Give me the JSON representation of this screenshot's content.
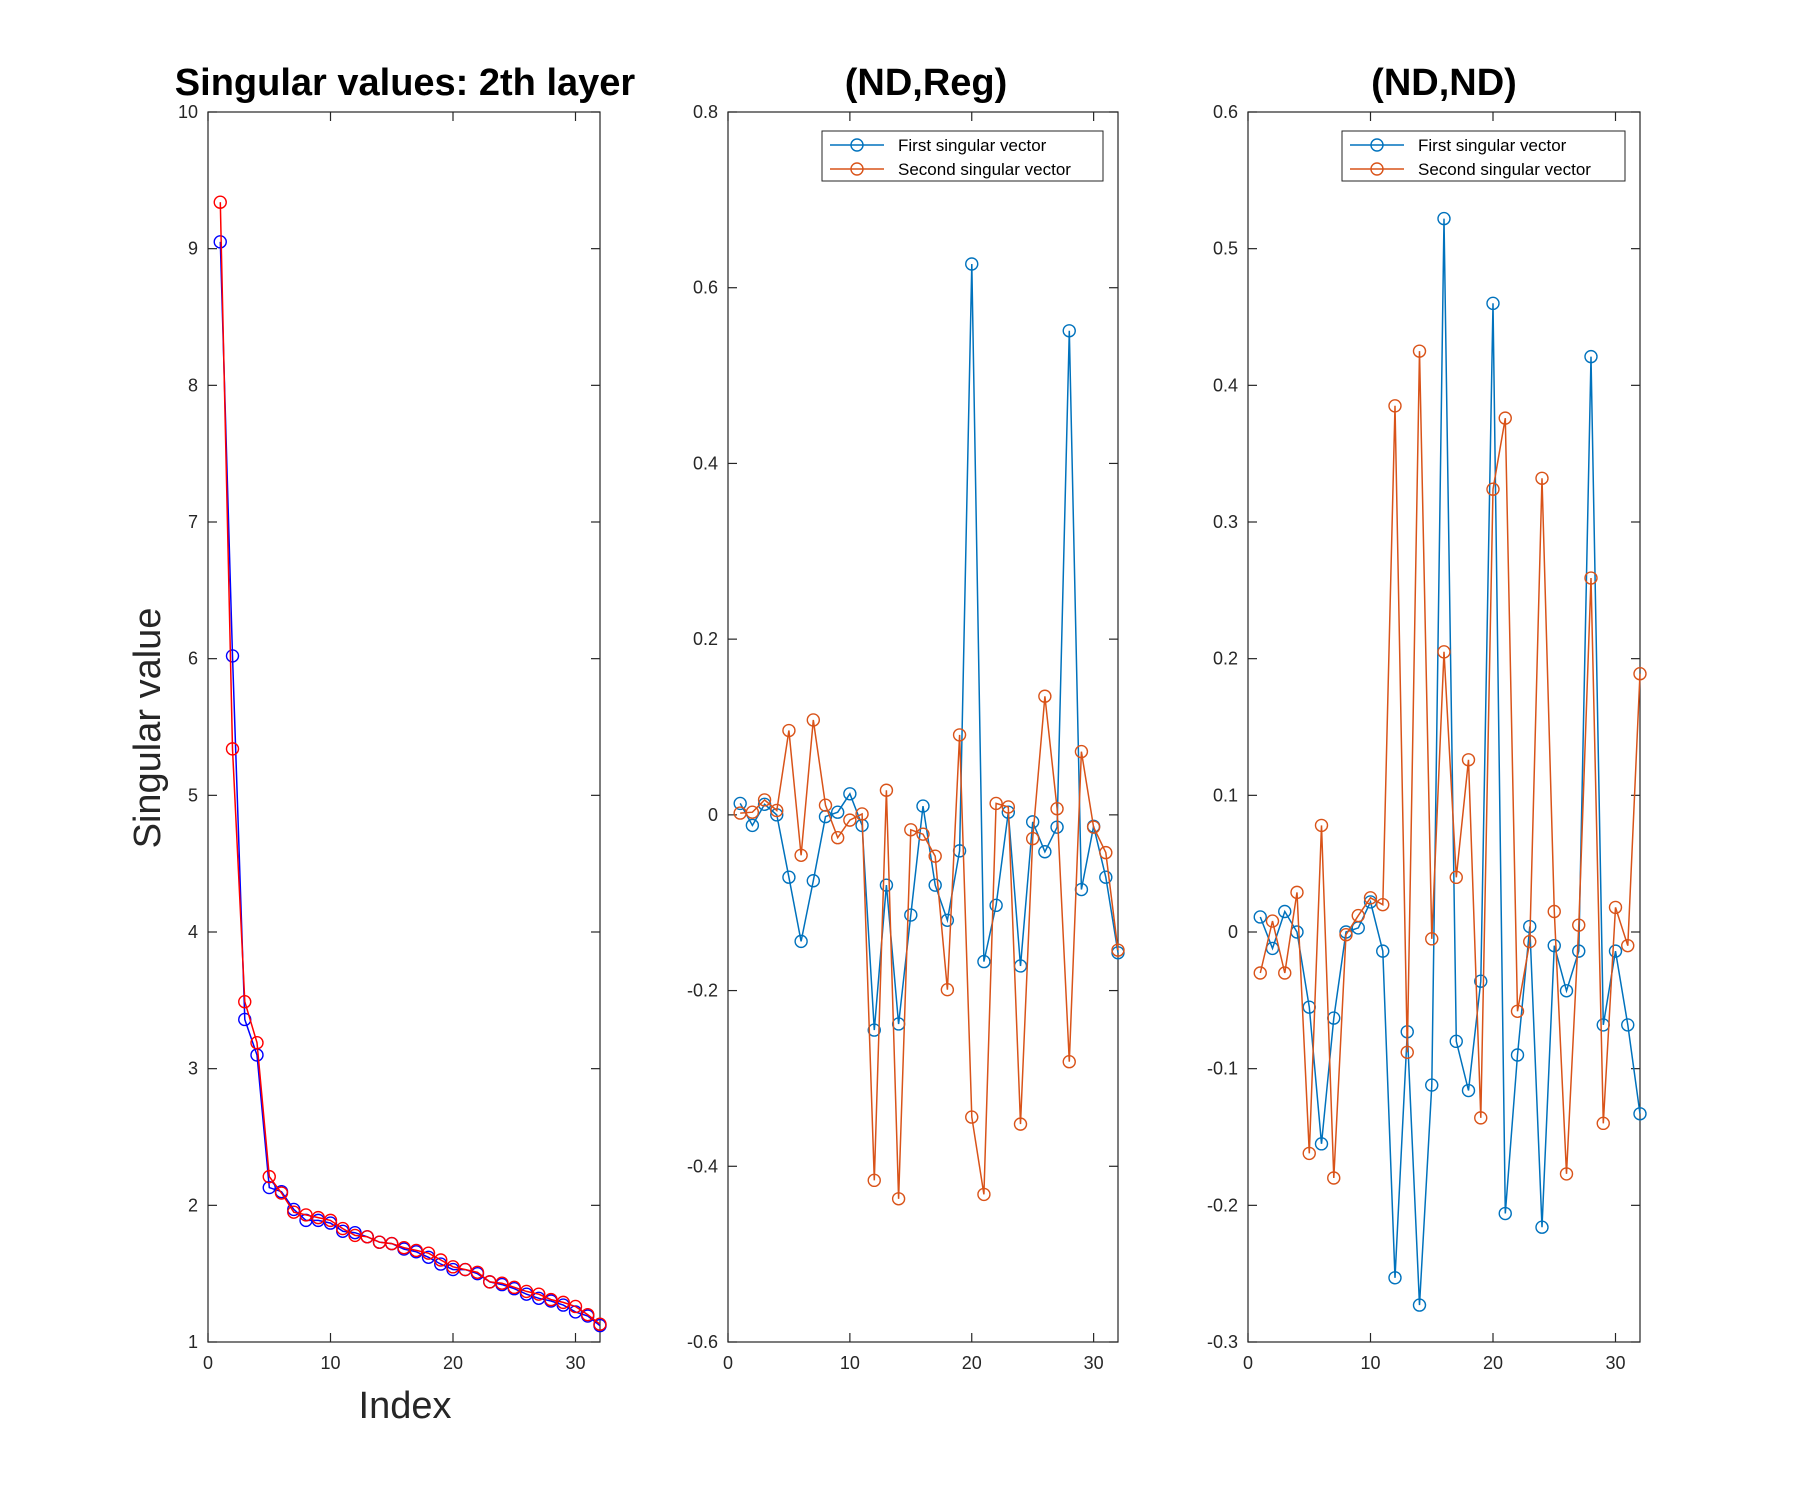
{
  "chart_data": [
    {
      "type": "line",
      "title": "Singular values: 2th layer",
      "xlabel": "Index",
      "ylabel": "Singular value",
      "xlim": [
        0,
        32
      ],
      "ylim": [
        1,
        10
      ],
      "xticks": [
        0,
        10,
        20,
        30
      ],
      "yticks": [
        1,
        2,
        3,
        4,
        5,
        6,
        7,
        8,
        9,
        10
      ],
      "x": [
        1,
        2,
        3,
        4,
        5,
        6,
        7,
        8,
        9,
        10,
        11,
        12,
        13,
        14,
        15,
        16,
        17,
        18,
        19,
        20,
        21,
        22,
        23,
        24,
        25,
        26,
        27,
        28,
        29,
        30,
        31,
        32
      ],
      "series": [
        {
          "color": "#0000ff",
          "values": [
            9.05,
            6.02,
            3.36,
            3.1,
            2.13,
            2.1,
            1.97,
            1.89,
            1.89,
            1.87,
            1.81,
            1.8,
            1.77,
            1.73,
            1.72,
            1.68,
            1.66,
            1.62,
            1.57,
            1.53,
            1.53,
            1.5,
            1.44,
            1.42,
            1.39,
            1.35,
            1.32,
            1.3,
            1.27,
            1.22,
            1.19,
            1.12
          ]
        },
        {
          "color": "#ff0000",
          "values": [
            9.34,
            5.34,
            3.49,
            3.19,
            2.21,
            2.09,
            1.95,
            1.93,
            1.91,
            1.89,
            1.83,
            1.78,
            1.77,
            1.73,
            1.72,
            1.69,
            1.67,
            1.65,
            1.6,
            1.55,
            1.53,
            1.51,
            1.44,
            1.43,
            1.4,
            1.37,
            1.35,
            1.31,
            1.29,
            1.26,
            1.2,
            1.13
          ]
        }
      ]
    },
    {
      "type": "line",
      "title": "(ND,Reg)",
      "xlim": [
        0,
        32
      ],
      "ylim": [
        -0.6,
        0.8
      ],
      "xticks": [
        0,
        10,
        20,
        30
      ],
      "yticks": [
        "-0.6",
        "-0.4",
        "-0.2",
        "0",
        "0.2",
        "0.4",
        "0.6",
        "0.8"
      ],
      "legend_position": "top-right",
      "x": [
        1,
        2,
        3,
        4,
        5,
        6,
        7,
        8,
        9,
        10,
        11,
        12,
        13,
        14,
        15,
        16,
        17,
        18,
        19,
        20,
        21,
        22,
        23,
        24,
        25,
        26,
        27,
        28,
        29,
        30,
        31,
        32
      ],
      "series": [
        {
          "name": "First singular vector",
          "color": "#0072bd",
          "values": [
            0.013,
            -0.012,
            0.012,
            0.0,
            -0.071,
            -0.144,
            -0.075,
            -0.002,
            0.003,
            0.024,
            -0.012,
            -0.245,
            -0.08,
            -0.238,
            -0.114,
            0.01,
            -0.08,
            -0.12,
            -0.041,
            0.627,
            -0.167,
            -0.103,
            0.003,
            -0.172,
            -0.008,
            -0.042,
            -0.014,
            0.551,
            -0.085,
            -0.013,
            -0.071,
            -0.157
          ]
        },
        {
          "name": "Second singular vector",
          "color": "#d95319",
          "values": [
            0.002,
            0.003,
            0.017,
            0.005,
            0.096,
            -0.046,
            0.108,
            0.011,
            -0.026,
            -0.006,
            0.001,
            -0.416,
            0.028,
            -0.437,
            -0.017,
            -0.022,
            -0.047,
            -0.199,
            0.091,
            -0.344,
            -0.432,
            0.013,
            0.009,
            -0.352,
            -0.027,
            0.135,
            0.007,
            -0.281,
            0.072,
            -0.014,
            -0.043,
            -0.154
          ]
        }
      ]
    },
    {
      "type": "line",
      "title": "(ND,ND)",
      "xlim": [
        0,
        32
      ],
      "ylim": [
        -0.3,
        0.6
      ],
      "xticks": [
        0,
        10,
        20,
        30
      ],
      "yticks": [
        "-0.3",
        "-0.2",
        "-0.1",
        "0",
        "0.1",
        "0.2",
        "0.3",
        "0.4",
        "0.5",
        "0.6"
      ],
      "legend_position": "top-right",
      "x": [
        1,
        2,
        3,
        4,
        5,
        6,
        7,
        8,
        9,
        10,
        11,
        12,
        13,
        14,
        15,
        16,
        17,
        18,
        19,
        20,
        21,
        22,
        23,
        24,
        25,
        26,
        27,
        28,
        29,
        30,
        31,
        32
      ],
      "series": [
        {
          "name": "First singular vector",
          "color": "#0072bd",
          "values": [
            0.011,
            -0.012,
            0.015,
            0.0,
            -0.055,
            -0.155,
            -0.063,
            0.0,
            0.003,
            0.022,
            -0.014,
            -0.253,
            -0.073,
            -0.273,
            -0.112,
            0.522,
            -0.08,
            -0.116,
            -0.036,
            0.46,
            -0.206,
            -0.09,
            0.004,
            -0.216,
            -0.01,
            -0.043,
            -0.014,
            0.421,
            -0.068,
            -0.014,
            -0.068,
            -0.133
          ]
        },
        {
          "name": "Second singular vector",
          "color": "#d95319",
          "values": [
            -0.03,
            0.008,
            -0.03,
            0.029,
            -0.162,
            0.078,
            -0.18,
            -0.002,
            0.012,
            0.025,
            0.02,
            0.385,
            -0.088,
            0.425,
            -0.005,
            0.205,
            0.04,
            0.126,
            -0.136,
            0.324,
            0.376,
            -0.058,
            -0.007,
            0.332,
            0.015,
            -0.177,
            0.005,
            0.259,
            -0.14,
            0.018,
            -0.01,
            0.189
          ]
        }
      ]
    }
  ]
}
